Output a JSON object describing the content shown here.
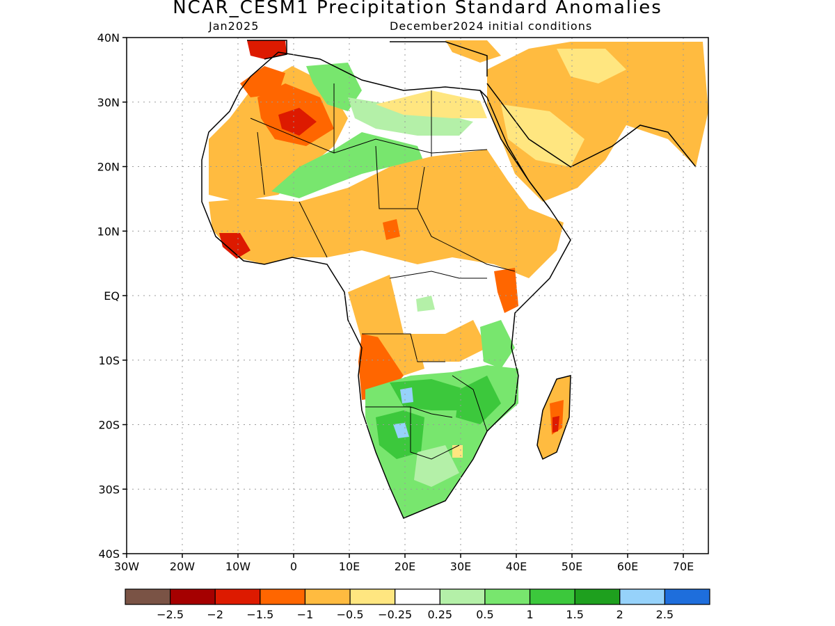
{
  "title": "NCAR_CESM1 Precipitation Standard Anomalies",
  "subtitle_left": "Jan2025",
  "subtitle_right": "December2024 initial conditions",
  "lat_labels": [
    "40N",
    "30N",
    "20N",
    "10N",
    "EQ",
    "10S",
    "20S",
    "30S",
    "40S"
  ],
  "lon_labels": [
    "30W",
    "20W",
    "10W",
    "0",
    "10E",
    "20E",
    "30E",
    "40E",
    "50E",
    "60E",
    "70E"
  ],
  "colorbar": {
    "colors": [
      "#7a5345",
      "#a50000",
      "#dd1a00",
      "#ff6600",
      "#ffbb40",
      "#ffe680",
      "#ffffff",
      "#b4f0a8",
      "#78e66e",
      "#3cc83c",
      "#1ea01e",
      "#96d2fa",
      "#1e6edc"
    ],
    "labels": [
      "-2.5",
      "-2",
      "-1.5",
      "-1",
      "-0.5",
      "-0.25",
      "0.25",
      "0.5",
      "1",
      "1.5",
      "2",
      "2.5"
    ]
  },
  "palette": {
    "dry_strong": "#dd1a00",
    "dry_moderate": "#ff6600",
    "dry_light": "#ffbb40",
    "dry_weak": "#ffe680",
    "wet_weak": "#b4f0a8",
    "wet_light": "#78e66e",
    "wet_moderate": "#3cc83c",
    "wet_strong": "#96d2fa"
  }
}
